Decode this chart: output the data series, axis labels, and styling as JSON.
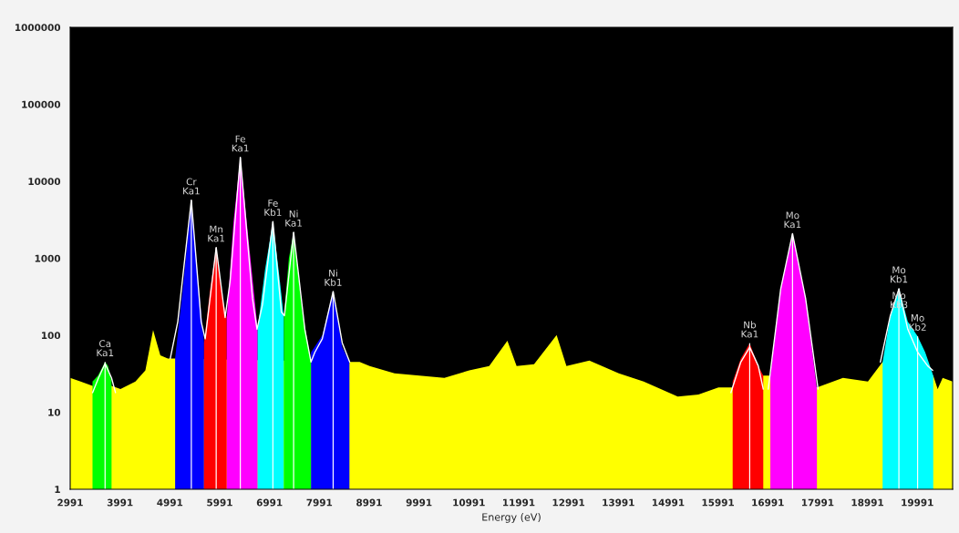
{
  "chart_data": {
    "type": "area",
    "xlabel": "Energy (eV)",
    "log": "y",
    "grid": false,
    "xlim": [
      2991,
      20700
    ],
    "ylim": [
      1,
      1000000
    ],
    "xticks": [
      2991,
      3991,
      4991,
      5991,
      6991,
      7991,
      8991,
      9991,
      10991,
      11991,
      12991,
      13991,
      14991,
      15991,
      16991,
      17991,
      18991,
      19991
    ],
    "yticks": [
      1,
      10,
      100,
      1000,
      10000,
      100000,
      1000000
    ],
    "series": [
      {
        "color": "#ffff00",
        "x": [
          2991,
          3200,
          3439,
          3821,
          4000,
          4300,
          4500,
          4655,
          4800,
          4950,
          5097,
          8595,
          8800,
          9000,
          9500,
          10000,
          10500,
          11000,
          11400,
          11765,
          11950,
          12300,
          12753,
          12950,
          13410,
          14000,
          14500,
          15184,
          15600,
          16000,
          16286,
          16900,
          17042,
          17977,
          18500,
          19000,
          19295,
          20311,
          20400,
          20500,
          20700
        ],
        "values": [
          28,
          25,
          22,
          22,
          20,
          25,
          35,
          117,
          55,
          50,
          50,
          45,
          45,
          40,
          32,
          30,
          28,
          35,
          40,
          85,
          40,
          42,
          101,
          40,
          47,
          32,
          25,
          16,
          17,
          21,
          21,
          30,
          30,
          21,
          28,
          25,
          45,
          30,
          20,
          28,
          25
        ]
      },
      {
        "color": "#00ff00",
        "x": [
          3439,
          3550,
          3691,
          3750,
          3821
        ],
        "values": [
          25,
          30,
          45,
          40,
          25
        ]
      },
      {
        "color": "#0000ff",
        "x": [
          5097,
          5250,
          5422,
          5560,
          5677
        ],
        "values": [
          50,
          400,
          5700,
          500,
          80
        ]
      },
      {
        "color": "#ff0000",
        "x": [
          5677,
          5800,
          5921,
          6050,
          6133
        ],
        "values": [
          80,
          400,
          1380,
          300,
          170
        ]
      },
      {
        "color": "#ff00ff",
        "x": [
          6133,
          6270,
          6405,
          6560,
          6753
        ],
        "values": [
          170,
          3000,
          20500,
          2000,
          120
        ]
      },
      {
        "color": "#00ffff",
        "x": [
          6753,
          6900,
          7059,
          7200,
          7279
        ],
        "values": [
          120,
          700,
          3000,
          500,
          170
        ]
      },
      {
        "color": "#00ff00",
        "x": [
          7279,
          7380,
          7475,
          7650,
          7824
        ],
        "values": [
          170,
          1000,
          2180,
          200,
          45
        ]
      },
      {
        "color": "#0000ff",
        "x": [
          7824,
          8050,
          8268,
          8450,
          8595
        ],
        "values": [
          60,
          100,
          370,
          70,
          45
        ]
      },
      {
        "color": "#ff0000",
        "x": [
          16286,
          16450,
          16628,
          16800,
          16900
        ],
        "values": [
          25,
          50,
          79,
          40,
          30
        ]
      },
      {
        "color": "#ff00ff",
        "x": [
          17042,
          17250,
          17487,
          17750,
          17977
        ],
        "values": [
          30,
          400,
          2090,
          300,
          20
        ]
      },
      {
        "color": "#00ffff",
        "x": [
          19295,
          19450,
          19622,
          19800,
          19997,
          20150,
          20311
        ],
        "values": [
          45,
          180,
          407,
          150,
          97,
          60,
          30
        ]
      },
      {
        "type": "line",
        "color": "#ffffff",
        "x": [
          3440,
          3560,
          3691,
          3820,
          3900
        ],
        "values": [
          18,
          28,
          43,
          28,
          18
        ]
      },
      {
        "type": "line",
        "color": "#ffffff",
        "x": [
          5000,
          5150,
          5422,
          5620,
          5700,
          5921,
          6100,
          6200,
          6405,
          6650,
          6740,
          6850,
          7059,
          7230,
          7290,
          7475,
          7700,
          7824,
          7900,
          8050,
          8268,
          8450,
          8600
        ],
        "values": [
          50,
          150,
          5700,
          150,
          90,
          1380,
          170,
          500,
          20500,
          300,
          120,
          250,
          3000,
          200,
          180,
          2180,
          120,
          45,
          60,
          90,
          370,
          80,
          45
        ]
      },
      {
        "type": "line",
        "color": "#ffffff",
        "x": [
          16250,
          16450,
          16628,
          16800,
          16900
        ],
        "values": [
          18,
          45,
          70,
          40,
          20
        ]
      },
      {
        "type": "line",
        "color": "#ffffff",
        "x": [
          17000,
          17250,
          17487,
          17750,
          18000
        ],
        "values": [
          20,
          400,
          2090,
          300,
          20
        ]
      },
      {
        "type": "line",
        "color": "#ffffff",
        "x": [
          19250,
          19450,
          19622,
          19800,
          20000,
          20200,
          20300
        ],
        "values": [
          45,
          180,
          400,
          120,
          60,
          40,
          35
        ]
      },
      {
        "type": "bar",
        "color": "#ffffff",
        "x": [
          3691,
          5422,
          5921,
          6405,
          7059,
          7475,
          8268,
          16628,
          17487,
          19622,
          19997
        ],
        "values": [
          45,
          5700,
          1380,
          20500,
          3000,
          2180,
          370,
          79,
          2090,
          407,
          97
        ]
      }
    ],
    "annotations": [
      {
        "text": "Ca\nKa1",
        "x": 3691,
        "y": 45
      },
      {
        "text": "Cr\nKa1",
        "x": 5422,
        "y": 5700
      },
      {
        "text": "Mn\nKa1",
        "x": 5921,
        "y": 1380
      },
      {
        "text": "Fe\nKa1",
        "x": 6405,
        "y": 20500
      },
      {
        "text": "Fe\nKb1",
        "x": 7059,
        "y": 3000
      },
      {
        "text": "Ni\nKa1",
        "x": 7475,
        "y": 2180
      },
      {
        "text": "Ni\nKb1",
        "x": 8268,
        "y": 370
      },
      {
        "text": "Nb\nKa1",
        "x": 16628,
        "y": 79
      },
      {
        "text": "Mo\nKa1",
        "x": 17487,
        "y": 2090
      },
      {
        "text": "Mo\nKb1",
        "x": 19622,
        "y": 407
      },
      {
        "text": "Mo\nKb3",
        "x": 19622,
        "y": 190
      },
      {
        "text": "Mo\nKb2",
        "x": 19997,
        "y": 97
      }
    ]
  }
}
